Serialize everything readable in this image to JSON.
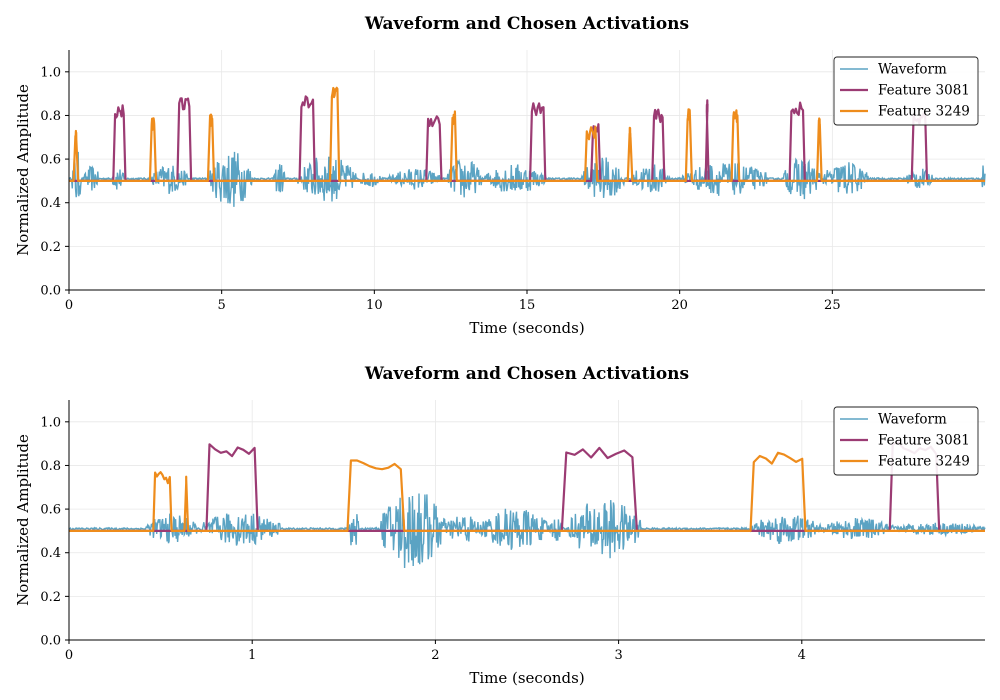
{
  "chart_data": [
    {
      "type": "line",
      "title": "Waveform and Chosen Activations",
      "xlabel": "Time (seconds)",
      "ylabel": "Normalized Amplitude",
      "xlim": [
        0,
        30
      ],
      "ylim": [
        0,
        1.1
      ],
      "xticks": [
        0,
        5,
        10,
        15,
        20,
        25
      ],
      "xtick_labels": [
        "0",
        "5",
        "10",
        "15",
        "20",
        "25"
      ],
      "yticks": [
        0.0,
        0.2,
        0.4,
        0.6,
        0.8,
        1.0
      ],
      "ytick_labels": [
        "0.0",
        "0.2",
        "0.4",
        "0.6",
        "0.8",
        "1.0"
      ],
      "legend_position": "top-right",
      "series": [
        {
          "name": "Waveform",
          "color": "#5ba3c3",
          "baseline": 0.51,
          "segments": [
            {
              "start": 0.1,
              "end": 0.4,
              "amp": 0.14
            },
            {
              "start": 0.5,
              "end": 1.0,
              "amp": 0.06
            },
            {
              "start": 1.4,
              "end": 1.8,
              "amp": 0.06
            },
            {
              "start": 2.7,
              "end": 3.9,
              "amp": 0.07
            },
            {
              "start": 4.6,
              "end": 6.0,
              "amp": 0.14
            },
            {
              "start": 6.7,
              "end": 7.1,
              "amp": 0.08
            },
            {
              "start": 7.5,
              "end": 9.4,
              "amp": 0.11
            },
            {
              "start": 9.5,
              "end": 10.2,
              "amp": 0.04
            },
            {
              "start": 10.5,
              "end": 12.2,
              "amp": 0.05
            },
            {
              "start": 12.4,
              "end": 13.5,
              "amp": 0.1
            },
            {
              "start": 13.6,
              "end": 15.6,
              "amp": 0.07
            },
            {
              "start": 16.8,
              "end": 18.2,
              "amp": 0.1
            },
            {
              "start": 18.4,
              "end": 19.7,
              "amp": 0.07
            },
            {
              "start": 20.1,
              "end": 22.9,
              "amp": 0.08
            },
            {
              "start": 23.4,
              "end": 24.6,
              "amp": 0.1
            },
            {
              "start": 24.7,
              "end": 26.2,
              "amp": 0.08
            },
            {
              "start": 27.4,
              "end": 28.3,
              "amp": 0.05
            },
            {
              "start": 29.9,
              "end": 30.0,
              "amp": 0.12
            }
          ]
        },
        {
          "name": "Feature 3081",
          "color": "#9b3b73",
          "baseline": 0.5,
          "bursts": [
            {
              "start": 1.45,
              "end": 1.85,
              "level": 0.82
            },
            {
              "start": 3.55,
              "end": 4.0,
              "level": 0.85
            },
            {
              "start": 7.55,
              "end": 8.05,
              "level": 0.86
            },
            {
              "start": 11.7,
              "end": 12.2,
              "level": 0.78
            },
            {
              "start": 15.1,
              "end": 15.6,
              "level": 0.83
            },
            {
              "start": 17.1,
              "end": 17.4,
              "level": 0.73
            },
            {
              "start": 19.1,
              "end": 19.5,
              "level": 0.8
            },
            {
              "start": 20.85,
              "end": 20.95,
              "level": 0.84
            },
            {
              "start": 23.6,
              "end": 24.1,
              "level": 0.83
            },
            {
              "start": 27.6,
              "end": 28.1,
              "level": 0.78
            }
          ]
        },
        {
          "name": "Feature 3249",
          "color": "#ee8c1c",
          "baseline": 0.5,
          "bursts": [
            {
              "start": 0.15,
              "end": 0.3,
              "level": 0.71
            },
            {
              "start": 2.65,
              "end": 2.85,
              "level": 0.76
            },
            {
              "start": 4.55,
              "end": 4.75,
              "level": 0.78
            },
            {
              "start": 8.55,
              "end": 8.85,
              "level": 0.9
            },
            {
              "start": 12.5,
              "end": 12.7,
              "level": 0.79
            },
            {
              "start": 16.9,
              "end": 17.3,
              "level": 0.72
            },
            {
              "start": 18.3,
              "end": 18.45,
              "level": 0.72
            },
            {
              "start": 20.2,
              "end": 20.4,
              "level": 0.8
            },
            {
              "start": 21.7,
              "end": 21.95,
              "level": 0.8
            },
            {
              "start": 24.5,
              "end": 24.65,
              "level": 0.77
            }
          ]
        }
      ]
    },
    {
      "type": "line",
      "title": "Waveform and Chosen Activations",
      "xlabel": "Time (seconds)",
      "ylabel": "Normalized Amplitude",
      "xlim": [
        0,
        5
      ],
      "ylim": [
        0,
        1.1
      ],
      "xticks": [
        0,
        1,
        2,
        3,
        4
      ],
      "xtick_labels": [
        "0",
        "1",
        "2",
        "3",
        "4"
      ],
      "yticks": [
        0.0,
        0.2,
        0.4,
        0.6,
        0.8,
        1.0
      ],
      "ytick_labels": [
        "0.0",
        "0.2",
        "0.4",
        "0.6",
        "0.8",
        "1.0"
      ],
      "legend_position": "top-right",
      "series": [
        {
          "name": "Waveform",
          "color": "#5ba3c3",
          "baseline": 0.51,
          "segments": [
            {
              "start": 0.42,
              "end": 0.7,
              "amp": 0.07
            },
            {
              "start": 0.72,
              "end": 1.15,
              "amp": 0.08
            },
            {
              "start": 1.53,
              "end": 1.58,
              "amp": 0.15
            },
            {
              "start": 1.7,
              "end": 2.05,
              "amp": 0.2
            },
            {
              "start": 2.05,
              "end": 2.25,
              "amp": 0.07
            },
            {
              "start": 2.25,
              "end": 2.62,
              "amp": 0.1
            },
            {
              "start": 2.62,
              "end": 2.7,
              "amp": 0.06
            },
            {
              "start": 2.72,
              "end": 3.12,
              "amp": 0.14
            },
            {
              "start": 3.72,
              "end": 4.1,
              "amp": 0.07
            },
            {
              "start": 4.12,
              "end": 4.5,
              "amp": 0.05
            },
            {
              "start": 4.5,
              "end": 5.0,
              "amp": 0.03
            }
          ]
        },
        {
          "name": "Feature 3081",
          "color": "#9b3b73",
          "baseline": 0.5,
          "bursts": [
            {
              "start": 0.75,
              "end": 1.03,
              "level": 0.87
            },
            {
              "start": 2.69,
              "end": 3.1,
              "level": 0.86
            },
            {
              "start": 4.48,
              "end": 4.75,
              "level": 0.88
            }
          ]
        },
        {
          "name": "Feature 3249",
          "color": "#ee8c1c",
          "baseline": 0.5,
          "bursts": [
            {
              "start": 0.46,
              "end": 0.56,
              "level": 0.74
            },
            {
              "start": 0.63,
              "end": 0.65,
              "level": 0.72
            },
            {
              "start": 1.52,
              "end": 1.83,
              "level": 0.8
            },
            {
              "start": 3.72,
              "end": 4.02,
              "level": 0.83
            }
          ]
        }
      ]
    }
  ]
}
